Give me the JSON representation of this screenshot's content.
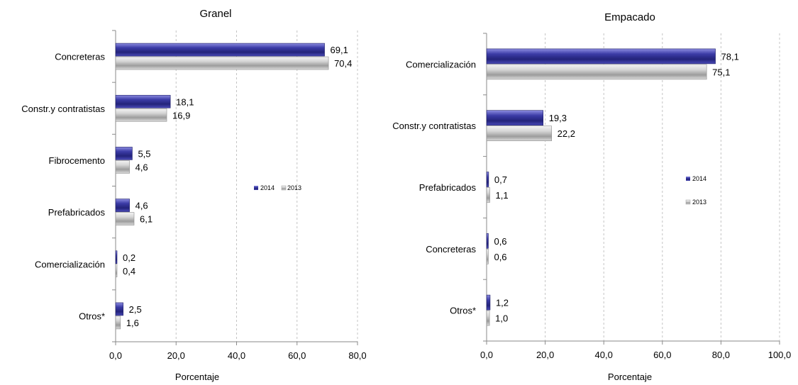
{
  "chart_data": [
    {
      "type": "bar",
      "orientation": "horizontal",
      "title": "Granel",
      "xlabel": "Porcentaje",
      "ylabel": "",
      "categories": [
        "Concreteras",
        "Constr.y contratistas",
        "Fibrocemento",
        "Prefabricados",
        "Comercialización",
        "Otros*"
      ],
      "series": [
        {
          "name": "2014",
          "values": [
            69.1,
            18.1,
            5.5,
            4.6,
            0.2,
            2.5
          ]
        },
        {
          "name": "2013",
          "values": [
            70.4,
            16.9,
            4.6,
            6.1,
            0.4,
            1.6
          ]
        }
      ],
      "value_labels": [
        [
          "69,1",
          "18,1",
          "5,5",
          "4,6",
          "0,2",
          "2,5"
        ],
        [
          "70,4",
          "16,9",
          "4,6",
          "6,1",
          "0,4",
          "1,6"
        ]
      ],
      "xlim": [
        0,
        80
      ],
      "xticks": [
        0,
        20,
        40,
        60,
        80
      ],
      "xtick_labels": [
        "0,0",
        "20,0",
        "40,0",
        "60,0",
        "80,0"
      ],
      "grid": "vertical dashed",
      "legend": "center-right, inline"
    },
    {
      "type": "bar",
      "orientation": "horizontal",
      "title": "Empacado",
      "xlabel": "Porcentaje",
      "ylabel": "",
      "categories": [
        "Comercialización",
        "Constr.y contratistas",
        "Prefabricados",
        "Concreteras",
        "Otros*"
      ],
      "series": [
        {
          "name": "2014",
          "values": [
            78.1,
            19.3,
            0.7,
            0.6,
            1.2
          ]
        },
        {
          "name": "2013",
          "values": [
            75.1,
            22.2,
            1.1,
            0.6,
            1.0
          ]
        }
      ],
      "value_labels": [
        [
          "78,1",
          "19,3",
          "0,7",
          "0,6",
          "1,2"
        ],
        [
          "75,1",
          "22,2",
          "1,1",
          "0,6",
          "1,0"
        ]
      ],
      "xlim": [
        0,
        100
      ],
      "xticks": [
        0,
        20,
        40,
        60,
        80,
        100
      ],
      "xtick_labels": [
        "0,0",
        "20,0",
        "40,0",
        "60,0",
        "80,0",
        "100,0"
      ],
      "grid": "vertical dashed",
      "legend": "center-right, stacked"
    }
  ],
  "colors": {
    "series_2014": "#2e2e8f",
    "series_2014_light": "#7a7ad8",
    "series_2013": "#b8b8b8",
    "series_2013_light": "#f2f2f2",
    "grid": "#bdbdbd",
    "axis": "#888888"
  }
}
